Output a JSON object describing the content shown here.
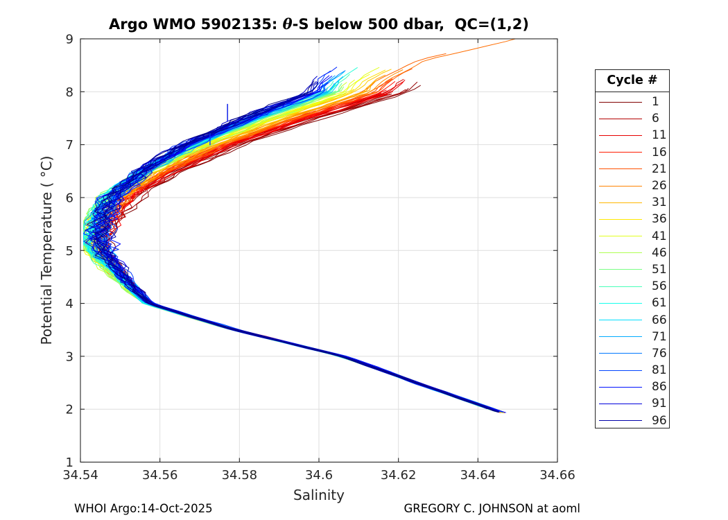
{
  "figure": {
    "title": {
      "prefix": "Argo WMO 5902135: ",
      "theta": "θ",
      "suffix": "-S below 500 dbar,  QC=(1,2)"
    },
    "footer_left": "WHOI Argo:14-Oct-2025",
    "footer_right": "GREGORY C. JOHNSON at aoml"
  },
  "chart_data": {
    "type": "line",
    "title": "Argo WMO 5902135: θ-S below 500 dbar,  QC=(1,2)",
    "xlabel": "Salinity",
    "ylabel": "Potential Temperature ( °C)",
    "xlim": [
      34.54,
      34.66
    ],
    "ylim": [
      1,
      9
    ],
    "xticks": {
      "values": [
        34.54,
        34.56,
        34.58,
        34.6,
        34.62,
        34.64,
        34.66
      ],
      "labels": [
        "34.54",
        "34.56",
        "34.58",
        "34.6",
        "34.62",
        "34.64",
        "34.66"
      ]
    },
    "yticks": {
      "values": [
        1,
        2,
        3,
        4,
        5,
        6,
        7,
        8,
        9
      ],
      "labels": [
        "1",
        "2",
        "3",
        "4",
        "5",
        "6",
        "7",
        "8",
        "9"
      ]
    },
    "grid": true,
    "colormap": "jet reversed (cycle 1 = dark red -> cycle 96 = dark navy)",
    "n_cycles": 100,
    "legend": {
      "title": "Cycle #",
      "position": "right-outside",
      "entries": [
        {
          "cycle": 1,
          "color": "#800000"
        },
        {
          "cycle": 6,
          "color": "#B30000"
        },
        {
          "cycle": 11,
          "color": "#E60000"
        },
        {
          "cycle": 16,
          "color": "#FF1B00"
        },
        {
          "cycle": 21,
          "color": "#FF4F00"
        },
        {
          "cycle": 26,
          "color": "#FF8200"
        },
        {
          "cycle": 31,
          "color": "#FFB600"
        },
        {
          "cycle": 36,
          "color": "#FFE900"
        },
        {
          "cycle": 41,
          "color": "#E1FF1E"
        },
        {
          "cycle": 46,
          "color": "#AEFF51"
        },
        {
          "cycle": 51,
          "color": "#7AFF85"
        },
        {
          "cycle": 56,
          "color": "#47FFB8"
        },
        {
          "cycle": 61,
          "color": "#13FFEC"
        },
        {
          "cycle": 66,
          "color": "#00DFFF"
        },
        {
          "cycle": 71,
          "color": "#00ABFF"
        },
        {
          "cycle": 76,
          "color": "#0078FF"
        },
        {
          "cycle": 81,
          "color": "#0044FF"
        },
        {
          "cycle": 86,
          "color": "#0011FF"
        },
        {
          "cycle": 91,
          "color": "#0000DC"
        },
        {
          "cycle": 96,
          "color": "#0000A9"
        }
      ]
    },
    "mean_curve": {
      "comment": "central (dense navy core) theta-S relation read from the plot; theta in degC, salinity in psu",
      "theta": [
        9.0,
        8.6,
        8.2,
        8.0,
        7.5,
        7.0,
        6.5,
        6.0,
        5.6,
        5.2,
        5.0,
        4.6,
        4.2,
        4.0,
        3.75,
        3.5,
        3.25,
        3.0,
        2.75,
        2.5,
        2.25,
        2.0,
        1.9
      ],
      "salinity": [
        34.6355,
        34.614,
        34.6055,
        34.6035,
        34.5855,
        34.5695,
        34.5575,
        34.5495,
        34.5467,
        34.5455,
        34.5462,
        34.5502,
        34.5548,
        34.5575,
        34.568,
        34.579,
        34.5925,
        34.606,
        34.6155,
        34.6245,
        34.634,
        34.6435,
        34.6475
      ],
      "spread_notes": "early (red) cycles are saltier on the upper branch (+0.02 at theta=8); late (blue) cycles slightly fresher; yellow-green cycles reach the salinity minimum ~34.5415 near theta=5.4; lower branch tightly bundled, tips at ~(34.645, 2.0); one orange cycle extends to ~(34.653, 9.0)"
    },
    "spikes": [
      {
        "salinity": 34.577,
        "theta": [
          7.44,
          7.77
        ],
        "color": "#0013E6"
      },
      {
        "salinity": 34.5726,
        "theta": [
          6.99,
          7.21
        ],
        "color": "#0033FF"
      }
    ],
    "notable": {
      "salinity_minimum": {
        "theta": 5.3,
        "salinity": 34.5415
      },
      "upper_tip_orange": {
        "theta": 9.0,
        "salinity": 34.653
      },
      "upper_tips_red": {
        "theta": 8.1,
        "salinity": 34.63
      },
      "lower_tip": {
        "theta": 2.0,
        "salinity": 34.645
      }
    }
  }
}
